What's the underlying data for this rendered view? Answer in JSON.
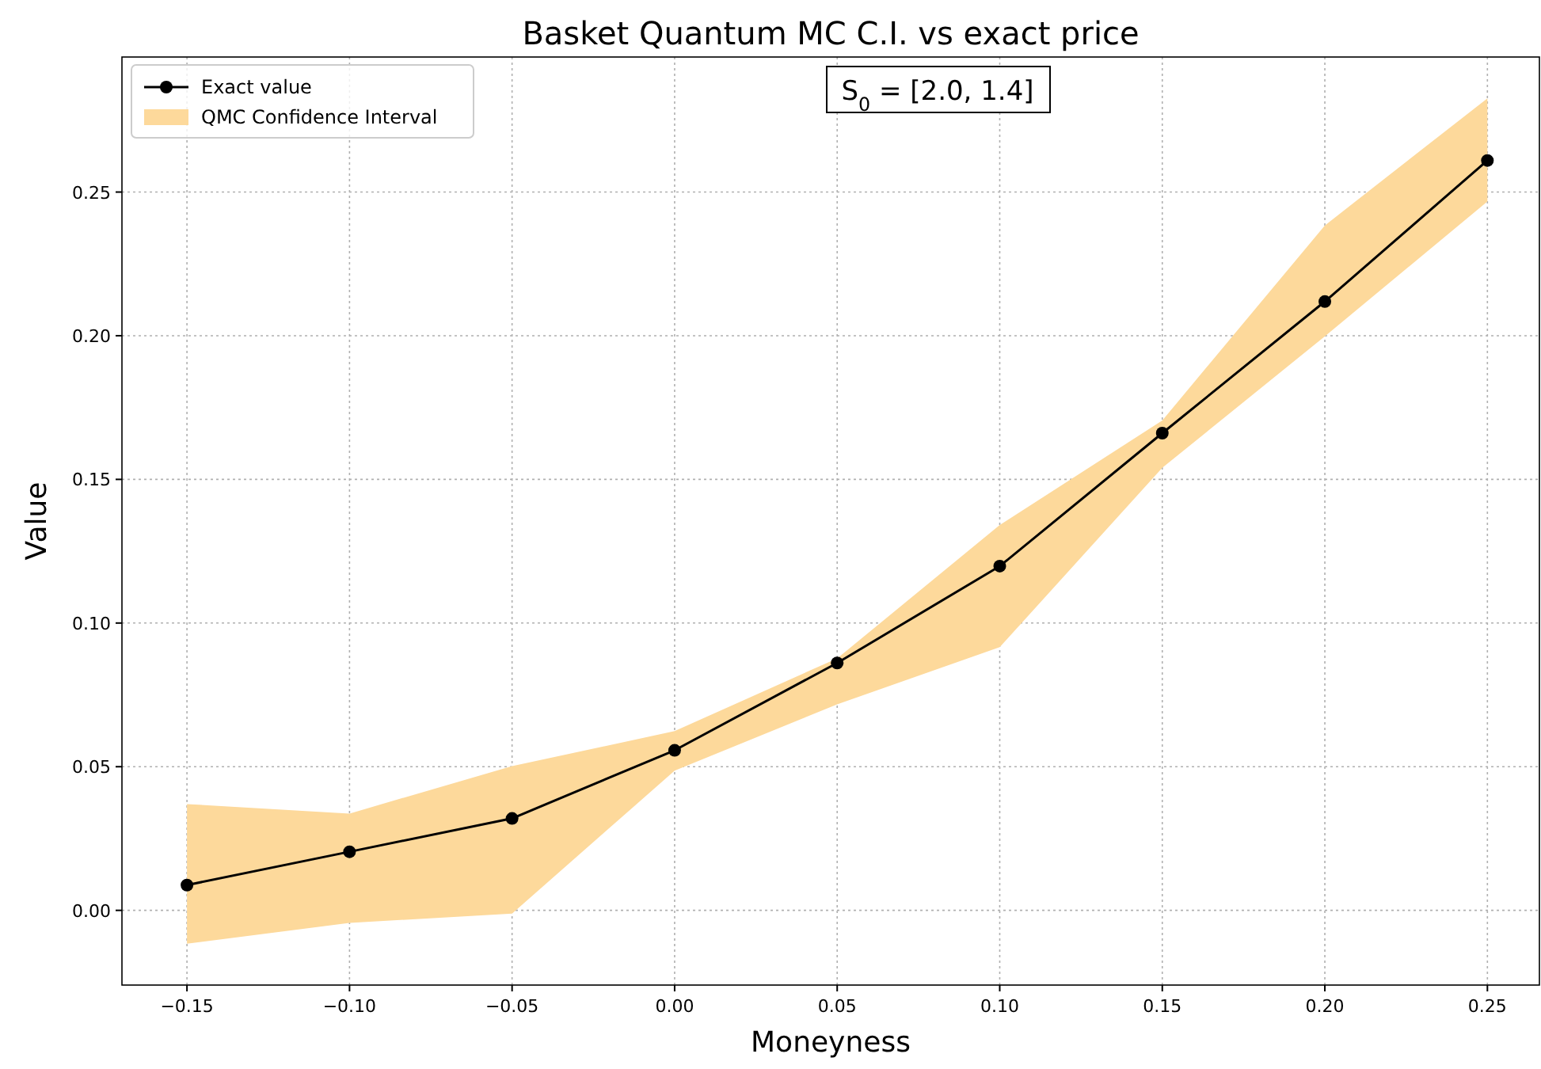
{
  "chart_data": {
    "type": "line",
    "title": "Basket Quantum MC C.I. vs exact price",
    "xlabel": "Moneyness",
    "ylabel": "Value",
    "annotations": [
      "S$_{0}$ = [2.0, 1.4]",
      "QMC Confidence Interval"
    ],
    "x": [
      -0.15,
      -0.1,
      -0.05,
      0.0,
      0.05,
      0.1,
      0.15,
      0.2,
      0.25
    ],
    "series": [
      {
        "name": "Exact value",
        "color": "#000000",
        "values": [
          0.0088,
          0.0204,
          0.032,
          0.0557,
          0.0861,
          0.1198,
          0.1661,
          0.2119,
          0.261
        ],
        "lower": [
          -0.0116,
          -0.0044,
          -0.0011,
          0.0486,
          0.0717,
          0.0916,
          0.154,
          0.1998,
          0.2467
        ],
        "upper": [
          0.037,
          0.0337,
          0.0502,
          0.0624,
          0.0877,
          0.1341,
          0.1705,
          0.2384,
          0.2826
        ]
      }
    ],
    "xlim": [
      -0.17,
      0.266
    ],
    "ylim": [
      -0.026,
      0.297
    ],
    "xticks": [
      {
        "value": -0.15,
        "label": "−0.15"
      },
      {
        "value": -0.1,
        "label": "−0.10"
      },
      {
        "value": -0.05,
        "label": "−0.05"
      },
      {
        "value": 0,
        "label": "0.00"
      },
      {
        "value": 0.05,
        "label": "0.05"
      },
      {
        "value": 0.1,
        "label": "0.10"
      },
      {
        "value": 0.15,
        "label": "0.15"
      },
      {
        "value": 0.2,
        "label": "0.20"
      },
      {
        "value": 0.25,
        "label": "0.25"
      }
    ],
    "yticks": [
      {
        "value": 0,
        "label": "0.00"
      },
      {
        "value": 0.05,
        "label": "0.05"
      },
      {
        "value": 0.1,
        "label": "0.10"
      },
      {
        "value": 0.15,
        "label": "0.15"
      },
      {
        "value": 0.2,
        "label": "0.20"
      },
      {
        "value": 0.25,
        "label": "0.25"
      }
    ],
    "grid": true,
    "legend": "top left",
    "marker": "circle",
    "line_style": "solid"
  }
}
